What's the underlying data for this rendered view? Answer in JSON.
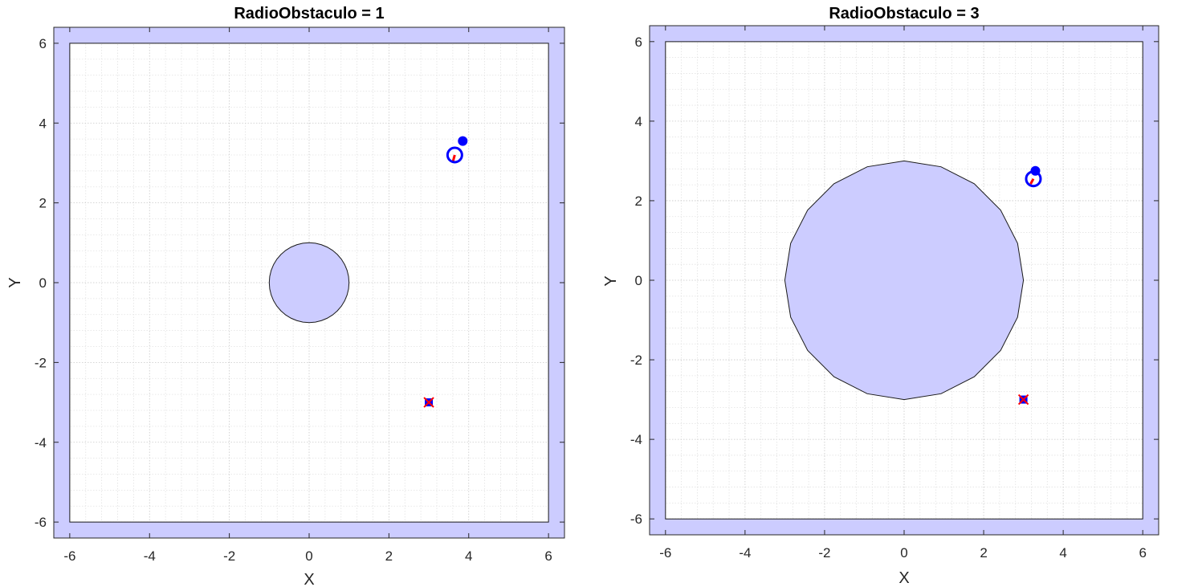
{
  "chart_data": [
    {
      "type": "scatter",
      "title": "RadioObstaculo = 1",
      "xlabel": "X",
      "ylabel": "Y",
      "xlim": [
        -6.4,
        6.4
      ],
      "ylim": [
        -6.4,
        6.4
      ],
      "xticks": [
        "-6",
        "-4",
        "-2",
        "0",
        "2",
        "4",
        "6"
      ],
      "yticks": [
        "6",
        "4",
        "2",
        "0",
        "-2",
        "-4",
        "-6"
      ],
      "grid": "on (major + minor, dotted)",
      "wall": {
        "inner_half_size": 6,
        "fill": "#ccccff"
      },
      "obstacle": {
        "shape": "circle",
        "center": [
          0,
          0
        ],
        "radius": 1,
        "fill": "#ccccff"
      },
      "goal": {
        "x": 3.0,
        "y": -3.0,
        "marker": "blue square with red x"
      },
      "robot": {
        "x": 3.65,
        "y": 3.2,
        "marker": "blue circle",
        "heading_to": [
          3.6,
          3.02
        ]
      },
      "target_point": {
        "x": 3.85,
        "y": 3.55,
        "marker": "blue dot"
      },
      "colors": {
        "wall_fill": "#ccccff",
        "robot": "#0000ff",
        "heading": "#ff0000",
        "goal_x": "#ff0000"
      }
    },
    {
      "type": "scatter",
      "title": "RadioObstaculo = 3",
      "xlabel": "X",
      "ylabel": "Y",
      "xlim": [
        -6.4,
        6.4
      ],
      "ylim": [
        -6.4,
        6.4
      ],
      "xticks": [
        "-6",
        "-4",
        "-2",
        "0",
        "2",
        "4",
        "6"
      ],
      "yticks": [
        "6",
        "4",
        "2",
        "0",
        "-2",
        "-4",
        "-6"
      ],
      "grid": "on (major + minor, dotted)",
      "wall": {
        "inner_half_size": 6,
        "fill": "#ccccff"
      },
      "obstacle": {
        "shape": "polygon (20 sides)",
        "center": [
          0,
          0
        ],
        "radius": 3,
        "fill": "#ccccff"
      },
      "goal": {
        "x": 3.0,
        "y": -3.0,
        "marker": "blue square with red x"
      },
      "robot": {
        "x": 3.25,
        "y": 2.55,
        "marker": "blue circle",
        "heading_to": [
          3.18,
          2.42
        ]
      },
      "target_point": {
        "x": 3.3,
        "y": 2.75,
        "marker": "blue dot"
      },
      "colors": {
        "wall_fill": "#ccccff",
        "robot": "#0000ff",
        "heading": "#ff0000",
        "goal_x": "#ff0000"
      }
    }
  ]
}
